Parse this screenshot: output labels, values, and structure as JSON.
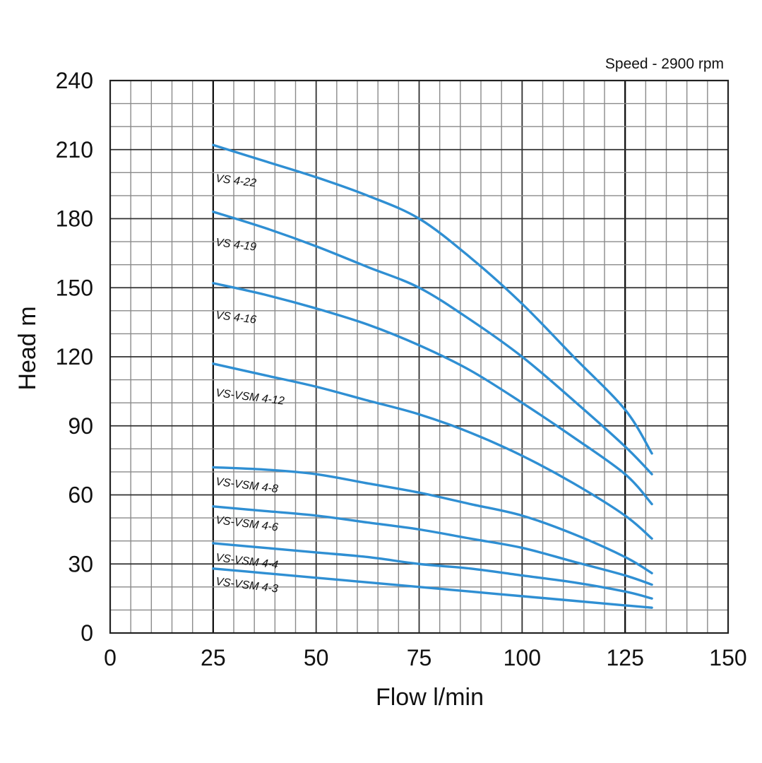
{
  "chart_data": {
    "type": "line",
    "speed_note": "Speed - 2900 rpm",
    "xlabel": "Flow l/min",
    "ylabel": "Head m",
    "xlim": [
      0,
      150
    ],
    "ylim": [
      0,
      240
    ],
    "x_ticks": [
      0,
      25,
      50,
      75,
      100,
      125,
      150
    ],
    "y_ticks": [
      0,
      30,
      60,
      90,
      120,
      150,
      180,
      210,
      240
    ],
    "x_minor_step": 5,
    "y_minor_step": 10,
    "grid": true,
    "heavy_x_gridlines": [
      25,
      125
    ],
    "curve_color": "#2f8fd3",
    "series": [
      {
        "name": "VS 4-22",
        "x": [
          25,
          37.5,
          50,
          62.5,
          75,
          87.5,
          100,
          112.5,
          125,
          131.5
        ],
        "y": [
          212,
          205,
          198,
          190,
          180,
          163,
          143,
          120,
          97,
          78
        ]
      },
      {
        "name": "VS 4-19",
        "x": [
          25,
          37.5,
          50,
          62.5,
          75,
          87.5,
          100,
          112.5,
          125,
          131.5
        ],
        "y": [
          183,
          176,
          168,
          159,
          150,
          136,
          120,
          101,
          81,
          69
        ]
      },
      {
        "name": "VS 4-16",
        "x": [
          25,
          37.5,
          50,
          62.5,
          75,
          87.5,
          100,
          112.5,
          125,
          131.5
        ],
        "y": [
          152,
          147,
          141,
          134,
          125,
          114,
          100,
          85,
          69,
          56
        ]
      },
      {
        "name": "VS-VSM 4-12",
        "x": [
          25,
          37.5,
          50,
          62.5,
          75,
          87.5,
          100,
          112.5,
          125,
          131.5
        ],
        "y": [
          117,
          112,
          107,
          101,
          95,
          87,
          77,
          65,
          51,
          41
        ]
      },
      {
        "name": "VS-VSM 4-8",
        "x": [
          25,
          37.5,
          50,
          62.5,
          75,
          87.5,
          100,
          112.5,
          125,
          131.5
        ],
        "y": [
          72,
          71,
          69,
          65,
          61,
          56,
          51,
          43,
          33,
          26
        ]
      },
      {
        "name": "VS-VSM 4-6",
        "x": [
          25,
          37.5,
          50,
          62.5,
          75,
          87.5,
          100,
          112.5,
          125,
          131.5
        ],
        "y": [
          55,
          53,
          51,
          48,
          45,
          41,
          37,
          31,
          25,
          21
        ]
      },
      {
        "name": "VS-VSM 4-4",
        "x": [
          25,
          37.5,
          50,
          62.5,
          75,
          87.5,
          100,
          112.5,
          125,
          131.5
        ],
        "y": [
          39,
          37,
          35,
          33,
          30,
          28,
          25,
          22,
          18,
          15
        ]
      },
      {
        "name": "VS-VSM 4-3",
        "x": [
          25,
          37.5,
          50,
          62.5,
          75,
          87.5,
          100,
          112.5,
          125,
          131.5
        ],
        "y": [
          28,
          26,
          24,
          22,
          20,
          18,
          16,
          14,
          12,
          11
        ]
      }
    ]
  }
}
